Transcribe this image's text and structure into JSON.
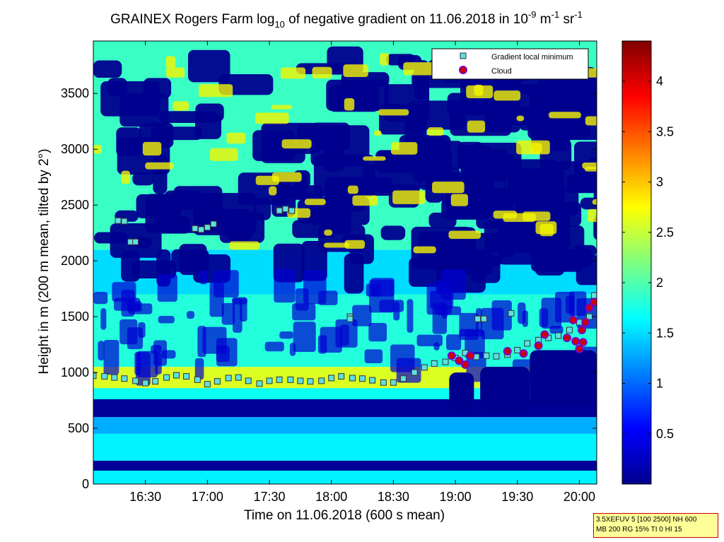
{
  "chart_data": {
    "type": "heatmap",
    "title": {
      "prefix": "GRAINEX Rogers Farm log",
      "sub": "10",
      "middle": " of negative gradient on 11.06.2018 in 10",
      "sup1": "-9",
      "unit": " m",
      "sup2": "-1",
      "unit2": " sr",
      "sup3": "-1"
    },
    "xlabel": "Time on 11.06.2018 (600 s mean)",
    "ylabel": "Height in m (200 m mean, tilted by 2°)",
    "x_ticks": [
      "16:30",
      "17:00",
      "17:30",
      "18:00",
      "18:30",
      "19:00",
      "19:30",
      "20:00"
    ],
    "x_tick_hours": [
      16.5,
      17.0,
      17.5,
      18.0,
      18.5,
      19.0,
      19.5,
      20.0
    ],
    "xlim_hours": [
      16.08,
      20.14
    ],
    "y_ticks": [
      "0",
      "500",
      "1000",
      "1500",
      "2000",
      "2500",
      "3000",
      "3500"
    ],
    "y_tick_values": [
      0,
      500,
      1000,
      1500,
      2000,
      2500,
      3000,
      3500
    ],
    "ylim": [
      0,
      3970
    ],
    "colorbar": {
      "ticks": [
        "0.5",
        "1",
        "1.5",
        "2",
        "2.5",
        "3",
        "3.5",
        "4"
      ],
      "tick_values": [
        0.5,
        1,
        1.5,
        2,
        2.5,
        3,
        3.5,
        4
      ],
      "range": [
        0,
        4.4
      ],
      "colormap": "jet"
    },
    "legend": {
      "placement": "top-right",
      "entries": [
        "Gradient local minimum",
        "Cloud"
      ]
    },
    "series": [
      {
        "name": "Gradient local minimum",
        "marker": "square",
        "color": "#5fe0e0",
        "points": [
          [
            16.08,
            970
          ],
          [
            16.17,
            965
          ],
          [
            16.25,
            955
          ],
          [
            16.33,
            945
          ],
          [
            16.42,
            925
          ],
          [
            16.5,
            905
          ],
          [
            16.58,
            920
          ],
          [
            16.67,
            955
          ],
          [
            16.75,
            975
          ],
          [
            16.83,
            965
          ],
          [
            16.92,
            935
          ],
          [
            17.0,
            895
          ],
          [
            17.08,
            920
          ],
          [
            17.17,
            950
          ],
          [
            17.25,
            955
          ],
          [
            17.33,
            925
          ],
          [
            17.42,
            900
          ],
          [
            17.5,
            925
          ],
          [
            17.58,
            935
          ],
          [
            17.67,
            935
          ],
          [
            17.75,
            925
          ],
          [
            17.83,
            920
          ],
          [
            17.92,
            925
          ],
          [
            18.0,
            950
          ],
          [
            18.08,
            965
          ],
          [
            18.17,
            950
          ],
          [
            18.25,
            945
          ],
          [
            18.33,
            930
          ],
          [
            18.42,
            910
          ],
          [
            18.5,
            910
          ],
          [
            18.58,
            945
          ],
          [
            18.67,
            1000
          ],
          [
            18.75,
            1045
          ],
          [
            18.83,
            1080
          ],
          [
            18.92,
            1095
          ],
          [
            19.0,
            1130
          ],
          [
            19.08,
            1175
          ],
          [
            19.17,
            1140
          ],
          [
            19.25,
            1150
          ],
          [
            19.33,
            1145
          ],
          [
            19.42,
            1160
          ],
          [
            19.5,
            1200
          ],
          [
            19.58,
            1260
          ],
          [
            19.67,
            1290
          ],
          [
            19.75,
            1310
          ],
          [
            19.83,
            1330
          ],
          [
            19.92,
            1380
          ],
          [
            20.0,
            1450
          ],
          [
            20.08,
            1500
          ],
          [
            20.12,
            1690
          ],
          [
            16.28,
            2360
          ],
          [
            16.33,
            2355
          ],
          [
            16.38,
            2170
          ],
          [
            16.42,
            2170
          ],
          [
            16.9,
            2290
          ],
          [
            16.95,
            2280
          ],
          [
            17.0,
            2300
          ],
          [
            17.05,
            2330
          ],
          [
            17.58,
            2450
          ],
          [
            17.63,
            2465
          ],
          [
            17.68,
            2450
          ],
          [
            18.15,
            1500
          ],
          [
            18.15,
            1480
          ],
          [
            19.18,
            1480
          ],
          [
            19.23,
            1480
          ],
          [
            19.45,
            1530
          ]
        ]
      },
      {
        "name": "Cloud",
        "marker": "circle",
        "color": "#cc0000",
        "points": [
          [
            18.97,
            1150
          ],
          [
            19.03,
            1105
          ],
          [
            19.08,
            1070
          ],
          [
            19.12,
            1150
          ],
          [
            19.42,
            1190
          ],
          [
            19.55,
            1170
          ],
          [
            19.67,
            1240
          ],
          [
            19.72,
            1340
          ],
          [
            19.9,
            1310
          ],
          [
            19.95,
            1470
          ],
          [
            20.0,
            1210
          ],
          [
            20.03,
            1270
          ],
          [
            20.05,
            1450
          ],
          [
            20.08,
            1580
          ],
          [
            20.12,
            1630
          ],
          [
            20.02,
            1380
          ],
          [
            19.97,
            1280
          ]
        ]
      }
    ],
    "field": {
      "x_hours": [
        16.08,
        16.5,
        17.0,
        17.5,
        18.0,
        18.5,
        19.0,
        19.5,
        20.0,
        20.14
      ],
      "bands": [
        {
          "from": 0,
          "to": 120,
          "level": 1.6
        },
        {
          "from": 120,
          "to": 210,
          "level": 0.1
        },
        {
          "from": 210,
          "to": 450,
          "level": 1.6
        },
        {
          "from": 450,
          "to": 600,
          "level": 1.3
        },
        {
          "from": 600,
          "to": 760,
          "level": 0.1
        },
        {
          "from": 760,
          "to": 860,
          "level": 1.7
        },
        {
          "from": 860,
          "to": 1050,
          "level": 2.6
        },
        {
          "from": 1050,
          "to": 1700,
          "level": 1.8
        },
        {
          "from": 1700,
          "to": 2100,
          "level": 1.5
        },
        {
          "from": 2100,
          "to": 3970,
          "level": 1.9
        }
      ]
    }
  },
  "info_box": {
    "line1": "3.5XEFUV 5 [100 2500] NH 600",
    "line2": "MB 200 RG 15% TI 0 HI 15"
  }
}
